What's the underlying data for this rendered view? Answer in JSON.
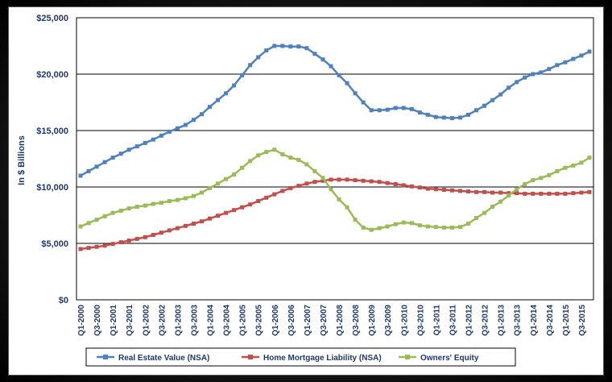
{
  "chart_data": {
    "type": "line",
    "title": "",
    "xlabel": "",
    "ylabel": "In $ Billions",
    "ylim": [
      0,
      25000
    ],
    "yticks": [
      "$0",
      "$5,000",
      "$10,000",
      "$15,000",
      "$20,000",
      "$25,000"
    ],
    "ytick_values": [
      0,
      5000,
      10000,
      15000,
      20000,
      25000
    ],
    "grid": "horizontal",
    "legend_position": "bottom",
    "x_tick_labels": [
      "Q1-2000",
      "Q3-2000",
      "Q1-2001",
      "Q3-2001",
      "Q1-2002",
      "Q3-2002",
      "Q1-2003",
      "Q3-2003",
      "Q1-2004",
      "Q3-2004",
      "Q1-2005",
      "Q3-2005",
      "Q1-2006",
      "Q3-2006",
      "Q1-2007",
      "Q3-2007",
      "Q1-2008",
      "Q3-2008",
      "Q1-2009",
      "Q3-2009",
      "Q1-2010",
      "Q3-2010",
      "Q1-2011",
      "Q3-2011",
      "Q1-2012",
      "Q3-2012",
      "Q1-2013",
      "Q3-2013",
      "Q1-2014",
      "Q3-2014",
      "Q1-2015",
      "Q3-2015"
    ],
    "x": [
      "Q1-2000",
      "Q2-2000",
      "Q3-2000",
      "Q4-2000",
      "Q1-2001",
      "Q2-2001",
      "Q3-2001",
      "Q4-2001",
      "Q1-2002",
      "Q2-2002",
      "Q3-2002",
      "Q4-2002",
      "Q1-2003",
      "Q2-2003",
      "Q3-2003",
      "Q4-2003",
      "Q1-2004",
      "Q2-2004",
      "Q3-2004",
      "Q4-2004",
      "Q1-2005",
      "Q2-2005",
      "Q3-2005",
      "Q4-2005",
      "Q1-2006",
      "Q2-2006",
      "Q3-2006",
      "Q4-2006",
      "Q1-2007",
      "Q2-2007",
      "Q3-2007",
      "Q4-2007",
      "Q1-2008",
      "Q2-2008",
      "Q3-2008",
      "Q4-2008",
      "Q1-2009",
      "Q2-2009",
      "Q3-2009",
      "Q4-2009",
      "Q1-2010",
      "Q2-2010",
      "Q3-2010",
      "Q4-2010",
      "Q1-2011",
      "Q2-2011",
      "Q3-2011",
      "Q4-2011",
      "Q1-2012",
      "Q2-2012",
      "Q3-2012",
      "Q4-2012",
      "Q1-2013",
      "Q2-2013",
      "Q3-2013",
      "Q4-2013",
      "Q1-2014",
      "Q2-2014",
      "Q3-2014",
      "Q4-2014",
      "Q1-2015",
      "Q2-2015",
      "Q3-2015",
      "Q4-2015"
    ],
    "series": [
      {
        "name": "Real Estate Value (NSA)",
        "color": "#4f81bd",
        "marker": "square",
        "values": [
          11000,
          11400,
          11800,
          12200,
          12600,
          12950,
          13300,
          13600,
          13900,
          14200,
          14550,
          14900,
          15200,
          15500,
          15950,
          16450,
          17100,
          17700,
          18300,
          19000,
          19900,
          20800,
          21500,
          22100,
          22500,
          22500,
          22450,
          22450,
          22300,
          21800,
          21300,
          20700,
          19900,
          19200,
          18300,
          17500,
          16800,
          16800,
          16850,
          17000,
          17000,
          16900,
          16600,
          16400,
          16200,
          16150,
          16100,
          16150,
          16400,
          16800,
          17200,
          17700,
          18200,
          18800,
          19300,
          19700,
          20000,
          20150,
          20450,
          20800,
          21050,
          21350,
          21650,
          22000
        ]
      },
      {
        "name": "Home Mortgage Liability (NSA)",
        "color": "#c0504d",
        "marker": "square",
        "values": [
          4500,
          4600,
          4700,
          4800,
          4950,
          5100,
          5250,
          5400,
          5550,
          5750,
          5950,
          6150,
          6350,
          6550,
          6750,
          6950,
          7200,
          7450,
          7700,
          7950,
          8200,
          8450,
          8750,
          9050,
          9350,
          9650,
          9900,
          10100,
          10300,
          10450,
          10550,
          10650,
          10650,
          10650,
          10600,
          10550,
          10500,
          10450,
          10350,
          10250,
          10150,
          10050,
          9950,
          9850,
          9800,
          9750,
          9700,
          9650,
          9600,
          9550,
          9550,
          9500,
          9500,
          9450,
          9450,
          9400,
          9400,
          9400,
          9400,
          9400,
          9400,
          9450,
          9500,
          9550
        ]
      },
      {
        "name": "Owners' Equity",
        "color": "#9bbb59",
        "marker": "square",
        "values": [
          6500,
          6800,
          7100,
          7400,
          7700,
          7900,
          8100,
          8250,
          8350,
          8500,
          8600,
          8750,
          8850,
          9000,
          9200,
          9500,
          9900,
          10300,
          10700,
          11100,
          11700,
          12300,
          12800,
          13100,
          13300,
          12900,
          12600,
          12400,
          12000,
          11400,
          10800,
          9800,
          8900,
          8200,
          7100,
          6400,
          6200,
          6350,
          6500,
          6700,
          6850,
          6800,
          6600,
          6500,
          6450,
          6400,
          6400,
          6450,
          6750,
          7250,
          7700,
          8250,
          8700,
          9250,
          9800,
          10250,
          10600,
          10800,
          11050,
          11400,
          11700,
          11900,
          12150,
          12600
        ]
      }
    ]
  }
}
